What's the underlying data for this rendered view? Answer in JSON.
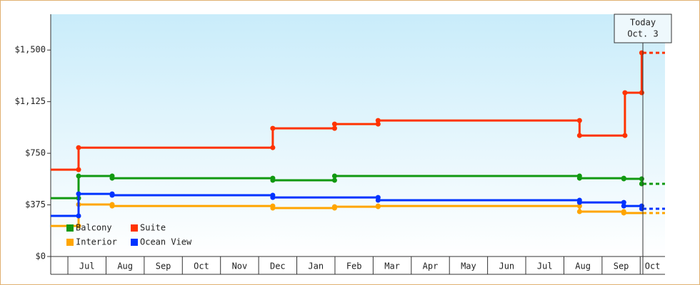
{
  "chart_data": {
    "type": "step-line",
    "categories": [
      "Jul",
      "Aug",
      "Sep",
      "Oct",
      "Nov",
      "Dec",
      "Jan",
      "Feb",
      "Mar",
      "Apr",
      "May",
      "Jun",
      "Jul",
      "Aug",
      "Sep",
      "Oct"
    ],
    "xlim": [
      -0.45,
      15.65
    ],
    "ylim": [
      0,
      1760
    ],
    "yticks": [
      {
        "value": 0,
        "label": "$0"
      },
      {
        "value": 375,
        "label": "$375"
      },
      {
        "value": 750,
        "label": "$750"
      },
      {
        "value": 1125,
        "label": "$1,125"
      },
      {
        "value": 1500,
        "label": "$1,500"
      }
    ],
    "today": {
      "x": 15.07,
      "labels": [
        "Today",
        "Oct. 3"
      ]
    },
    "series": [
      {
        "name": "Balcony",
        "color": "#119911",
        "x": [
          -0.45,
          0.28,
          1.16,
          5.37,
          6.99,
          13.41,
          14.57,
          15.04
        ],
        "values": [
          424,
          585,
          569,
          554,
          585,
          569,
          564,
          528
        ]
      },
      {
        "name": "Suite",
        "color": "#ff3300",
        "x": [
          -0.45,
          0.28,
          5.37,
          6.99,
          8.13,
          13.41,
          14.6,
          15.04
        ],
        "values": [
          631,
          791,
          931,
          962,
          988,
          879,
          1190,
          1480
        ]
      },
      {
        "name": "Interior",
        "color": "#ffa500",
        "x": [
          -0.45,
          0.28,
          1.16,
          5.37,
          6.99,
          8.13,
          13.41,
          14.57
        ],
        "values": [
          222,
          378,
          367,
          352,
          362,
          367,
          326,
          316
        ]
      },
      {
        "name": "Ocean View",
        "color": "#0033ff",
        "x": [
          -0.45,
          0.28,
          1.16,
          5.37,
          8.13,
          13.41,
          14.57,
          15.04
        ],
        "values": [
          295,
          455,
          445,
          429,
          409,
          393,
          367,
          347
        ]
      }
    ]
  }
}
